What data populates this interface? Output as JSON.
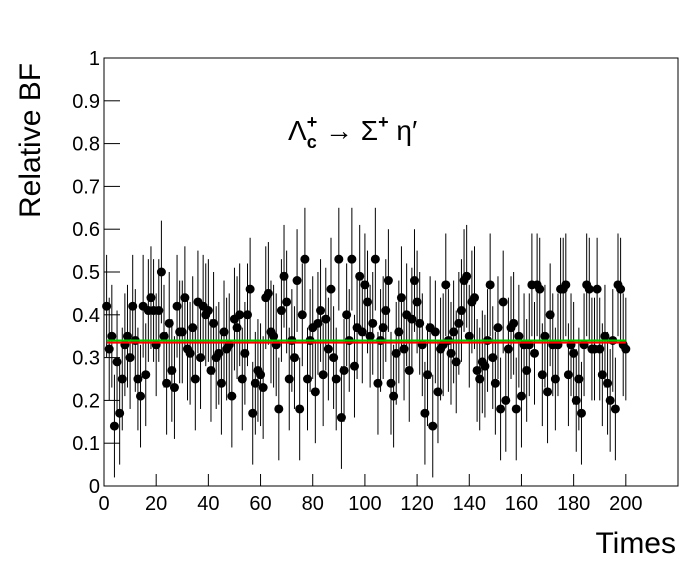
{
  "chart_data": {
    "type": "errorbar",
    "xlabel": "Times",
    "ylabel": "Relative BF",
    "annotation": [
      {
        "text": "Λ"
      },
      {
        "text": "c",
        "pos": "sub"
      },
      {
        "text": "+",
        "pos": "sup"
      },
      {
        "text": " → Σ"
      },
      {
        "text": "+",
        "pos": "sup"
      },
      {
        "text": " η′"
      }
    ],
    "xlim": [
      0,
      220
    ],
    "xticks": [
      0,
      20,
      40,
      60,
      80,
      100,
      120,
      140,
      160,
      180,
      200
    ],
    "ylim": [
      0,
      1
    ],
    "yticks": [
      0,
      0.1,
      0.2,
      0.3,
      0.4,
      0.5,
      0.6,
      0.7,
      0.8,
      0.9,
      1
    ],
    "lines": [
      {
        "color": "#00cc00",
        "value": 0.34
      },
      {
        "color": "#ff0000",
        "value": 0.335
      }
    ],
    "series": [
      {
        "color": "#000000",
        "error": 0.12,
        "x": [
          1,
          2,
          3,
          4,
          5,
          6,
          7,
          8,
          9,
          10,
          11,
          12,
          13,
          14,
          15,
          16,
          17,
          18,
          19,
          20,
          21,
          22,
          23,
          24,
          25,
          26,
          27,
          28,
          29,
          30,
          31,
          32,
          33,
          34,
          35,
          36,
          37,
          38,
          39,
          40,
          41,
          42,
          43,
          44,
          45,
          46,
          47,
          48,
          49,
          50,
          51,
          52,
          53,
          54,
          55,
          56,
          57,
          58,
          59,
          60,
          61,
          62,
          63,
          64,
          65,
          66,
          67,
          68,
          69,
          70,
          71,
          72,
          73,
          74,
          75,
          76,
          77,
          78,
          79,
          80,
          81,
          82,
          83,
          84,
          85,
          86,
          87,
          88,
          89,
          90,
          91,
          92,
          93,
          94,
          95,
          96,
          97,
          98,
          99,
          100,
          101,
          102,
          103,
          104,
          105,
          106,
          107,
          108,
          109,
          110,
          111,
          112,
          113,
          114,
          115,
          116,
          117,
          118,
          119,
          120,
          121,
          122,
          123,
          124,
          125,
          126,
          127,
          128,
          129,
          130,
          131,
          132,
          133,
          134,
          135,
          136,
          137,
          138,
          139,
          140,
          141,
          142,
          143,
          144,
          145,
          146,
          147,
          148,
          149,
          150,
          151,
          152,
          153,
          154,
          155,
          156,
          157,
          158,
          159,
          160,
          161,
          162,
          163,
          164,
          165,
          166,
          167,
          168,
          169,
          170,
          171,
          172,
          173,
          174,
          175,
          176,
          177,
          178,
          179,
          180,
          181,
          182,
          183,
          184,
          185,
          186,
          187,
          188,
          189,
          190,
          191,
          192,
          193,
          194,
          195,
          196,
          197,
          198,
          199,
          200
        ],
        "values": [
          0.42,
          0.32,
          0.35,
          0.14,
          0.29,
          0.17,
          0.25,
          0.33,
          0.35,
          0.3,
          0.42,
          0.34,
          0.25,
          0.21,
          0.42,
          0.26,
          0.41,
          0.44,
          0.41,
          0.33,
          0.41,
          0.5,
          0.35,
          0.24,
          0.38,
          0.27,
          0.23,
          0.42,
          0.36,
          0.36,
          0.44,
          0.32,
          0.31,
          0.37,
          0.25,
          0.43,
          0.3,
          0.42,
          0.4,
          0.41,
          0.27,
          0.38,
          0.3,
          0.31,
          0.24,
          0.36,
          0.32,
          0.33,
          0.21,
          0.39,
          0.37,
          0.4,
          0.25,
          0.31,
          0.4,
          0.46,
          0.17,
          0.24,
          0.27,
          0.26,
          0.23,
          0.44,
          0.45,
          0.36,
          0.35,
          0.33,
          0.18,
          0.41,
          0.49,
          0.43,
          0.25,
          0.34,
          0.3,
          0.48,
          0.18,
          0.4,
          0.53,
          0.25,
          0.34,
          0.37,
          0.22,
          0.38,
          0.41,
          0.26,
          0.39,
          0.32,
          0.46,
          0.3,
          0.25,
          0.53,
          0.16,
          0.27,
          0.4,
          0.34,
          0.53,
          0.28,
          0.37,
          0.49,
          0.36,
          0.47,
          0.43,
          0.35,
          0.38,
          0.53,
          0.24,
          0.34,
          0.37,
          0.41,
          0.48,
          0.24,
          0.21,
          0.31,
          0.36,
          0.44,
          0.32,
          0.4,
          0.27,
          0.39,
          0.48,
          0.43,
          0.38,
          0.33,
          0.17,
          0.26,
          0.37,
          0.14,
          0.36,
          0.22,
          0.32,
          0.33,
          0.47,
          0.34,
          0.31,
          0.36,
          0.29,
          0.38,
          0.41,
          0.48,
          0.49,
          0.35,
          0.43,
          0.44,
          0.27,
          0.25,
          0.29,
          0.28,
          0.34,
          0.47,
          0.3,
          0.24,
          0.37,
          0.18,
          0.43,
          0.2,
          0.32,
          0.37,
          0.38,
          0.18,
          0.35,
          0.21,
          0.33,
          0.27,
          0.33,
          0.47,
          0.31,
          0.47,
          0.46,
          0.26,
          0.35,
          0.22,
          0.4,
          0.33,
          0.25,
          0.33,
          0.46,
          0.46,
          0.47,
          0.26,
          0.33,
          0.31,
          0.2,
          0.25,
          0.17,
          0.33,
          0.47,
          0.46,
          0.32,
          0.32,
          0.46,
          0.32,
          0.26,
          0.35,
          0.24,
          0.2,
          0.34,
          0.18,
          0.47,
          0.46,
          0.33,
          0.32
        ]
      }
    ]
  }
}
